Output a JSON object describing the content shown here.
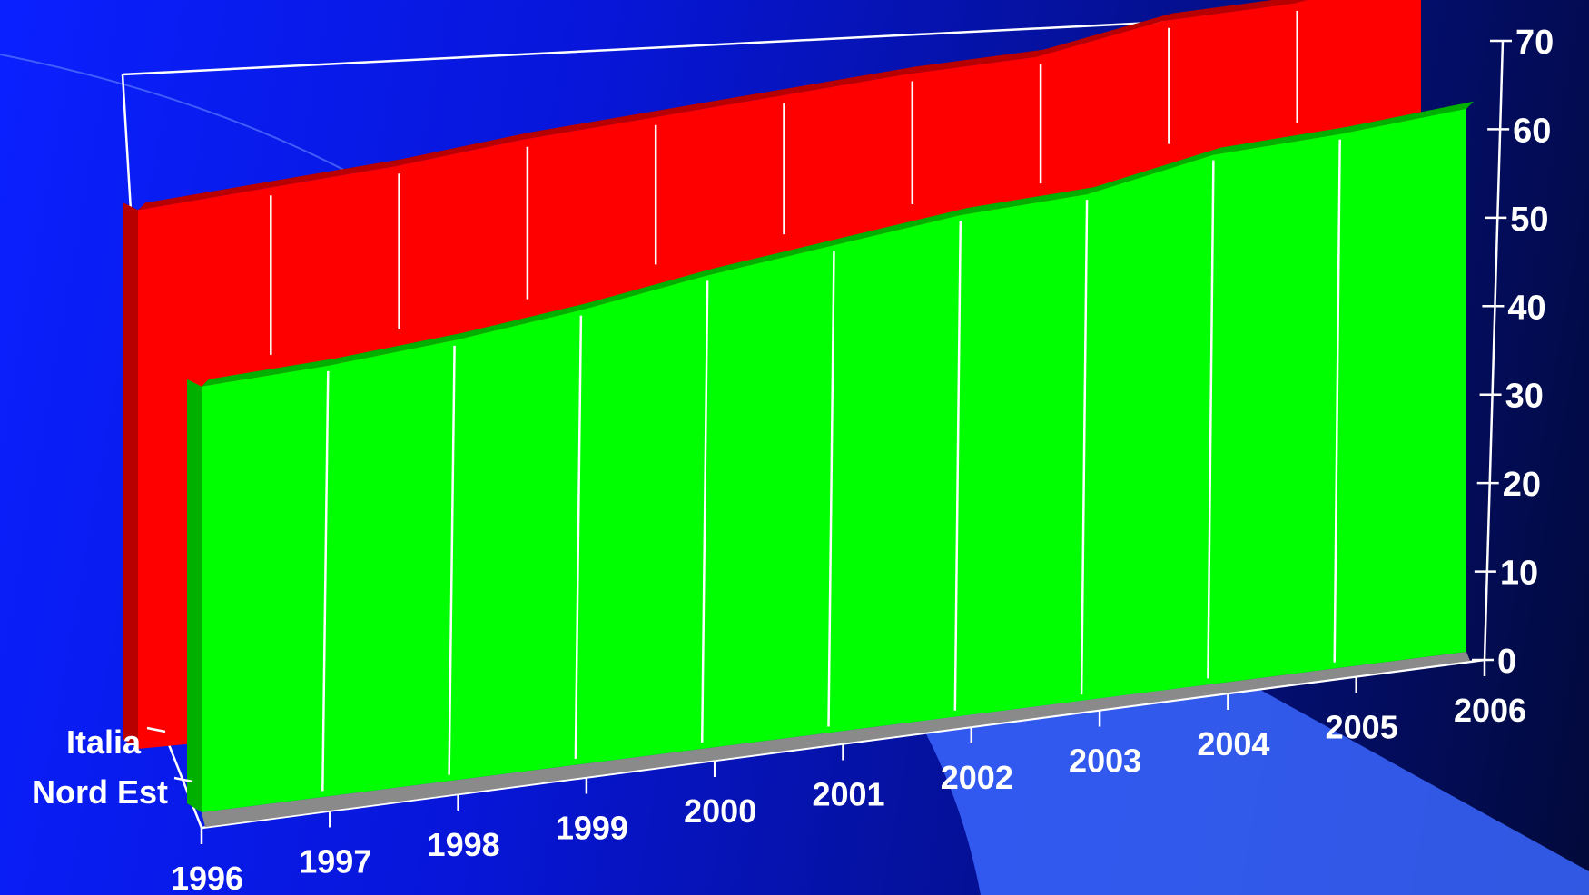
{
  "colors": {
    "background_start": "#0a20ff",
    "background_end": "#020a3a",
    "series_front": "#00ff00",
    "series_back": "#ff0000",
    "floor": "#8a8a8a",
    "gridline": "#ffffff"
  },
  "chart_data": {
    "type": "area",
    "view": "3d",
    "categories": [
      "1996",
      "1997",
      "1998",
      "1999",
      "2000",
      "2001",
      "2002",
      "2003",
      "2004",
      "2005",
      "2006"
    ],
    "series": [
      {
        "name": "Italia",
        "color": "#ff0000",
        "values": [
          56,
          57,
          58,
          59.5,
          60.5,
          61.5,
          62.5,
          63,
          65.5,
          66,
          68
        ]
      },
      {
        "name": "Nord Est",
        "color": "#00ff00",
        "values": [
          45.5,
          46,
          47,
          48.5,
          50.5,
          52,
          53.5,
          54,
          56.5,
          57,
          58
        ]
      }
    ],
    "y_ticks": [
      "0",
      "10",
      "20",
      "30",
      "40",
      "50",
      "60",
      "70"
    ],
    "ylim": [
      0,
      70
    ],
    "grid": true,
    "legend": "none"
  }
}
